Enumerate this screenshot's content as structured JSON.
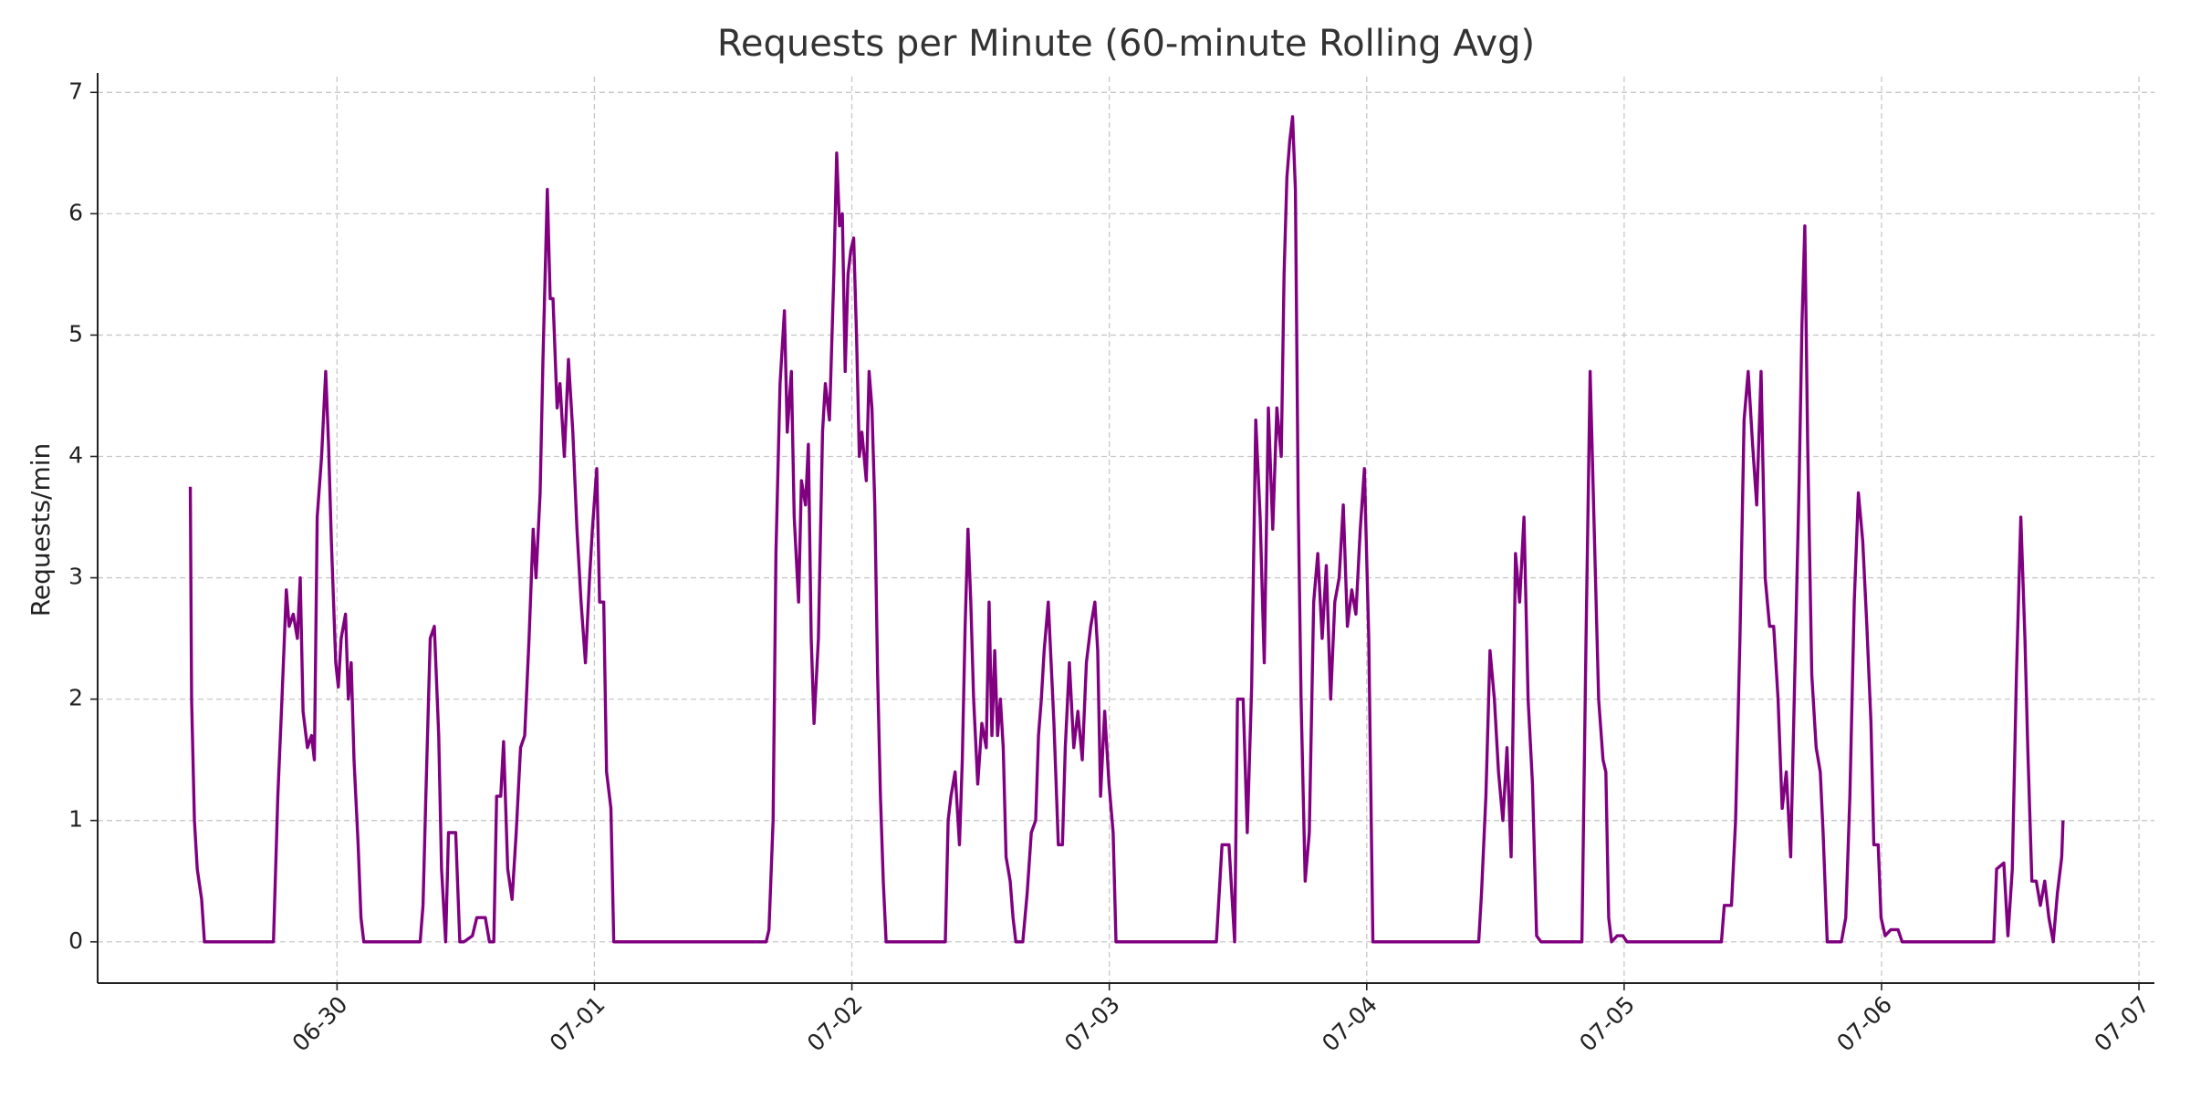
{
  "chart_data": {
    "type": "line",
    "title": "Requests per Minute (60-minute Rolling Avg)",
    "y_label": "Requests/min",
    "x": [
      -0.57,
      -0.565,
      -0.554,
      -0.543,
      -0.526,
      -0.515,
      -0.247,
      -0.23,
      -0.214,
      -0.197,
      -0.186,
      -0.17,
      -0.154,
      -0.143,
      -0.132,
      -0.115,
      -0.099,
      -0.088,
      -0.077,
      -0.06,
      -0.044,
      -0.033,
      -0.022,
      -0.005,
      0.005,
      0.016,
      0.033,
      0.044,
      0.055,
      0.066,
      0.082,
      0.093,
      0.104,
      0.323,
      0.334,
      0.345,
      0.362,
      0.378,
      0.395,
      0.406,
      0.422,
      0.433,
      0.461,
      0.477,
      0.493,
      0.526,
      0.543,
      0.576,
      0.592,
      0.609,
      0.62,
      0.636,
      0.647,
      0.663,
      0.68,
      0.696,
      0.713,
      0.729,
      0.746,
      0.762,
      0.773,
      0.789,
      0.8,
      0.817,
      0.828,
      0.839,
      0.855,
      0.866,
      0.883,
      0.899,
      0.916,
      0.932,
      0.948,
      0.965,
      0.981,
      0.992,
      1.009,
      1.02,
      1.036,
      1.047,
      1.064,
      1.075,
      1.667,
      1.678,
      1.694,
      1.705,
      1.721,
      1.738,
      1.749,
      1.765,
      1.776,
      1.793,
      1.804,
      1.82,
      1.831,
      1.842,
      1.853,
      1.87,
      1.886,
      1.897,
      1.913,
      1.93,
      1.941,
      1.952,
      1.963,
      1.974,
      1.985,
      1.996,
      2.007,
      2.018,
      2.029,
      2.039,
      2.056,
      2.067,
      2.078,
      2.089,
      2.1,
      2.111,
      2.122,
      2.133,
      2.363,
      2.374,
      2.385,
      2.401,
      2.418,
      2.429,
      2.44,
      2.451,
      2.462,
      2.473,
      2.489,
      2.505,
      2.522,
      2.533,
      2.544,
      2.555,
      2.566,
      2.577,
      2.588,
      2.599,
      2.615,
      2.626,
      2.637,
      2.664,
      2.681,
      2.697,
      2.714,
      2.725,
      2.736,
      2.747,
      2.763,
      2.774,
      2.785,
      2.802,
      2.818,
      2.829,
      2.845,
      2.862,
      2.878,
      2.895,
      2.911,
      2.928,
      2.944,
      2.955,
      2.966,
      2.982,
      2.999,
      3.015,
      3.026,
      3.416,
      3.427,
      3.438,
      3.465,
      3.476,
      3.487,
      3.498,
      3.52,
      3.536,
      3.553,
      3.569,
      3.586,
      3.602,
      3.618,
      3.635,
      3.651,
      3.668,
      3.679,
      3.69,
      3.701,
      3.712,
      3.723,
      3.734,
      3.745,
      3.761,
      3.777,
      3.794,
      3.81,
      3.827,
      3.843,
      3.86,
      3.876,
      3.893,
      3.909,
      3.925,
      3.942,
      3.958,
      3.975,
      3.991,
      4.008,
      4.024,
      4.435,
      4.446,
      4.463,
      4.479,
      4.496,
      4.512,
      4.529,
      4.545,
      4.561,
      4.578,
      4.594,
      4.611,
      4.627,
      4.644,
      4.66,
      4.677,
      4.836,
      4.852,
      4.868,
      4.885,
      4.901,
      4.918,
      4.929,
      4.94,
      4.951,
      4.973,
      4.995,
      5.011,
      5.378,
      5.389,
      5.417,
      5.433,
      5.45,
      5.466,
      5.482,
      5.499,
      5.515,
      5.532,
      5.548,
      5.565,
      5.581,
      5.598,
      5.614,
      5.63,
      5.647,
      5.663,
      5.68,
      5.691,
      5.702,
      5.713,
      5.729,
      5.746,
      5.762,
      5.773,
      5.789,
      5.844,
      5.861,
      5.877,
      5.894,
      5.91,
      5.927,
      5.943,
      5.959,
      5.97,
      5.987,
      5.998,
      6.014,
      6.036,
      6.064,
      6.08,
      6.436,
      6.447,
      6.475,
      6.491,
      6.508,
      6.524,
      6.541,
      6.557,
      6.568,
      6.584,
      6.601,
      6.617,
      6.634,
      6.65,
      6.667,
      6.683,
      6.7,
      6.705
    ],
    "series": [
      {
        "color": "#800080",
        "values": [
          3.75,
          2.0,
          1.0,
          0.6,
          0.35,
          0,
          0,
          1.2,
          2.0,
          2.9,
          2.6,
          2.7,
          2.5,
          3.0,
          1.9,
          1.6,
          1.7,
          1.5,
          3.5,
          4.0,
          4.7,
          4.1,
          3.3,
          2.3,
          2.1,
          2.5,
          2.7,
          2.0,
          2.3,
          1.5,
          0.8,
          0.2,
          0,
          0,
          0.3,
          1.2,
          2.5,
          2.6,
          1.7,
          0.6,
          0,
          0.9,
          0.9,
          0,
          0,
          0.05,
          0.2,
          0.2,
          0,
          0,
          1.2,
          1.2,
          1.65,
          0.6,
          0.35,
          0.9,
          1.6,
          1.7,
          2.5,
          3.4,
          3.0,
          3.7,
          4.8,
          6.2,
          5.3,
          5.3,
          4.4,
          4.6,
          4.0,
          4.8,
          4.2,
          3.4,
          2.8,
          2.3,
          3.0,
          3.4,
          3.9,
          2.8,
          2.8,
          1.4,
          1.1,
          0,
          0,
          0.1,
          1.0,
          3.2,
          4.6,
          5.2,
          4.2,
          4.7,
          3.5,
          2.8,
          3.8,
          3.6,
          4.1,
          2.5,
          1.8,
          2.5,
          4.2,
          4.6,
          4.3,
          5.5,
          6.5,
          5.9,
          6.0,
          4.7,
          5.5,
          5.7,
          5.8,
          5.0,
          4.0,
          4.2,
          3.8,
          4.7,
          4.4,
          3.6,
          2.2,
          1.2,
          0.5,
          0,
          0,
          1.0,
          1.2,
          1.4,
          0.8,
          1.5,
          2.6,
          3.4,
          2.8,
          2.0,
          1.3,
          1.8,
          1.6,
          2.8,
          1.7,
          2.4,
          1.7,
          2.0,
          1.6,
          0.7,
          0.5,
          0.2,
          0,
          0,
          0.4,
          0.9,
          1.0,
          1.7,
          2.0,
          2.4,
          2.8,
          2.3,
          1.8,
          0.8,
          0.8,
          1.6,
          2.3,
          1.6,
          1.9,
          1.5,
          2.3,
          2.6,
          2.8,
          2.4,
          1.2,
          1.9,
          1.3,
          0.9,
          0,
          0,
          0.4,
          0.8,
          0.8,
          0.4,
          0,
          2.0,
          2.0,
          0.9,
          2.1,
          4.3,
          3.5,
          2.3,
          4.4,
          3.4,
          4.4,
          4.0,
          5.5,
          6.3,
          6.6,
          6.8,
          6.2,
          3.6,
          2.0,
          0.5,
          0.9,
          2.8,
          3.2,
          2.5,
          3.1,
          2.0,
          2.8,
          3.0,
          3.6,
          2.6,
          2.9,
          2.7,
          3.4,
          3.9,
          2.5,
          0,
          0,
          0.4,
          1.2,
          2.4,
          2.0,
          1.4,
          1.0,
          1.6,
          0.7,
          3.2,
          2.8,
          3.5,
          2.0,
          1.3,
          0.05,
          0,
          0,
          2.5,
          4.7,
          3.3,
          2.0,
          1.5,
          1.4,
          0.2,
          0,
          0.05,
          0.05,
          0,
          0,
          0.3,
          0.3,
          1.0,
          2.5,
          4.3,
          4.7,
          4.1,
          3.6,
          4.7,
          3.0,
          2.6,
          2.6,
          2.0,
          1.1,
          1.4,
          0.7,
          2.2,
          3.8,
          5.1,
          5.9,
          4.1,
          2.2,
          1.6,
          1.4,
          0.9,
          0,
          0,
          0.2,
          1.2,
          2.8,
          3.7,
          3.3,
          2.6,
          1.8,
          0.8,
          0.8,
          0.2,
          0.05,
          0.1,
          0.1,
          0,
          0,
          0.6,
          0.65,
          0.05,
          0.6,
          2.2,
          3.5,
          2.5,
          1.6,
          0.5,
          0.5,
          0.3,
          0.5,
          0.2,
          0,
          0.4,
          0.7,
          1.0
        ]
      }
    ],
    "xlim": [
      -0.93,
      7.06
    ],
    "xticks": [
      {
        "value": 0,
        "label": "06-30"
      },
      {
        "value": 1,
        "label": "07-01"
      },
      {
        "value": 2,
        "label": "07-02"
      },
      {
        "value": 3,
        "label": "07-03"
      },
      {
        "value": 4,
        "label": "07-04"
      },
      {
        "value": 5,
        "label": "07-05"
      },
      {
        "value": 6,
        "label": "07-06"
      },
      {
        "value": 7,
        "label": "07-07"
      }
    ],
    "ylim": [
      -0.34,
      7.13
    ],
    "yticks": [
      0,
      1,
      2,
      3,
      4,
      5,
      6,
      7
    ],
    "grid": true
  }
}
